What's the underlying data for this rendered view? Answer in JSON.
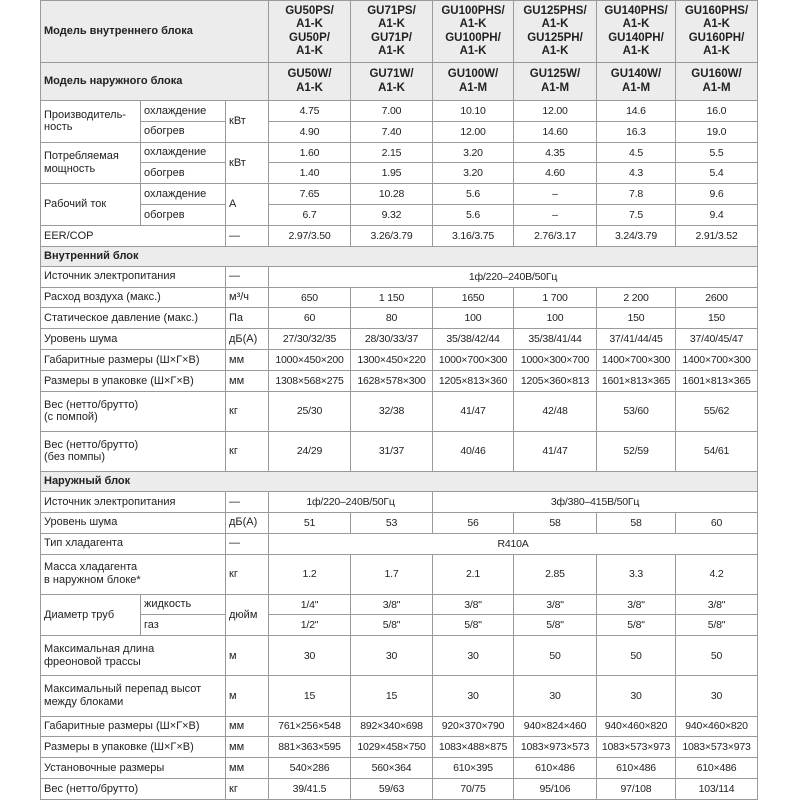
{
  "header": {
    "indoor_label": "Модель внутреннего блока",
    "indoor_models": [
      "GU50PS/\nA1-K\nGU50P/\nA1-K",
      "GU71PS/\nA1-K\nGU71P/\nA1-K",
      "GU100PHS/\nA1-K\nGU100PH/\nA1-K",
      "GU125PHS/\nA1-K\nGU125PH/\nA1-K",
      "GU140PHS/\nA1-K\nGU140PH/\nA1-K",
      "GU160PHS/\nA1-K\nGU160PH/\nA1-K"
    ],
    "outdoor_label": "Модель наружного блока",
    "outdoor_models": [
      "GU50W/\nA1-K",
      "GU71W/\nA1-K",
      "GU100W/\nA1-M",
      "GU125W/\nA1-M",
      "GU140W/\nA1-M",
      "GU160W/\nA1-M"
    ]
  },
  "performance": [
    {
      "label": "Производитель-\nность",
      "unit": "кВт",
      "modes": [
        "охлаждение",
        "обогрев"
      ],
      "values": [
        [
          "4.75",
          "7.00",
          "10.10",
          "12.00",
          "14.6",
          "16.0"
        ],
        [
          "4.90",
          "7.40",
          "12.00",
          "14.60",
          "16.3",
          "19.0"
        ]
      ]
    },
    {
      "label": "Потребляемая\nмощность",
      "unit": "кВт",
      "modes": [
        "охлаждение",
        "обогрев"
      ],
      "values": [
        [
          "1.60",
          "2.15",
          "3.20",
          "4.35",
          "4.5",
          "5.5"
        ],
        [
          "1.40",
          "1.95",
          "3.20",
          "4.60",
          "4.3",
          "5.4"
        ]
      ]
    },
    {
      "label": "Рабочий ток",
      "unit": "А",
      "modes": [
        "охлаждение",
        "обогрев"
      ],
      "values": [
        [
          "7.65",
          "10.28",
          "5.6",
          "–",
          "7.8",
          "9.6"
        ],
        [
          "6.7",
          "9.32",
          "5.6",
          "–",
          "7.5",
          "9.4"
        ]
      ]
    },
    {
      "label": "EER/COP",
      "unit": "—",
      "values": [
        "2.97/3.50",
        "3.26/3.79",
        "3.16/3.75",
        "2.76/3.17",
        "3.24/3.79",
        "2.91/3.52"
      ]
    }
  ],
  "indoor": {
    "title": "Внутренний блок",
    "rows": [
      {
        "label": "Источник электропитания",
        "unit": "—",
        "values": [
          "1ф/220–240В/50Гц"
        ]
      },
      {
        "label": "Расход воздуха (макс.)",
        "unit": "м³/ч",
        "values": [
          "650",
          "1 150",
          "1650",
          "1 700",
          "2 200",
          "2600"
        ]
      },
      {
        "label": "Статическое давление (макс.)",
        "unit": "Па",
        "values": [
          "60",
          "80",
          "100",
          "100",
          "150",
          "150"
        ]
      },
      {
        "label": "Уровень шума",
        "unit": "дБ(А)",
        "values": [
          "27/30/32/35",
          "28/30/33/37",
          "35/38/42/44",
          "35/38/41/44",
          "37/41/44/45",
          "37/40/45/47"
        ]
      },
      {
        "label": "Габаритные размеры (Ш×Г×В)",
        "unit": "мм",
        "values": [
          "1000×450×200",
          "1300×450×220",
          "1000×700×300",
          "1000×300×700",
          "1400×700×300",
          "1400×700×300"
        ]
      },
      {
        "label": "Размеры в упаковке (Ш×Г×В)",
        "unit": "мм",
        "values": [
          "1308×568×275",
          "1628×578×300",
          "1205×813×360",
          "1205×360×813",
          "1601×813×365",
          "1601×813×365"
        ]
      },
      {
        "label": "Вес (нетто/брутто)\n(с помпой)",
        "unit": "кг",
        "values": [
          "25/30",
          "32/38",
          "41/47",
          "42/48",
          "53/60",
          "55/62"
        ]
      },
      {
        "label": "Вес (нетто/брутто)\n(без помпы)",
        "unit": "кг",
        "values": [
          "24/29",
          "31/37",
          "40/46",
          "41/47",
          "52/59",
          "54/61"
        ]
      }
    ]
  },
  "outdoor": {
    "title": "Наружный блок",
    "rows": [
      {
        "label": "Источник электропитания",
        "unit": "—",
        "values": [
          "1ф/220–240В/50Гц",
          "3ф/380–415В/50Гц"
        ]
      },
      {
        "label": "Уровень шума",
        "unit": "дБ(А)",
        "values": [
          "51",
          "53",
          "56",
          "58",
          "58",
          "60"
        ]
      },
      {
        "label": "Тип хладагента",
        "unit": "—",
        "values": [
          "R410A"
        ]
      },
      {
        "label": "Масса хладагента\nв наружном блоке*",
        "unit": "кг",
        "values": [
          "1.2",
          "1.7",
          "2.1",
          "2.85",
          "3.3",
          "4.2"
        ]
      },
      {
        "label": "Диаметр труб",
        "unit": "дюйм",
        "modes": [
          "жидкость",
          "газ"
        ],
        "values": [
          [
            "1/4\"",
            "3/8\"",
            "3/8\"",
            "3/8\"",
            "3/8\"",
            "3/8\""
          ],
          [
            "1/2\"",
            "5/8\"",
            "5/8\"",
            "5/8\"",
            "5/8\"",
            "5/8\""
          ]
        ]
      },
      {
        "label": "Максимальная длина\nфреоновой трассы",
        "unit": "м",
        "values": [
          "30",
          "30",
          "30",
          "50",
          "50",
          "50"
        ]
      },
      {
        "label": "Максимальный перепад высот\nмежду блоками",
        "unit": "м",
        "values": [
          "15",
          "15",
          "30",
          "30",
          "30",
          "30"
        ]
      },
      {
        "label": "Габаритные размеры (Ш×Г×В)",
        "unit": "мм",
        "values": [
          "761×256×548",
          "892×340×698",
          "920×370×790",
          "940×824×460",
          "940×460×820",
          "940×460×820"
        ]
      },
      {
        "label": "Размеры в упаковке (Ш×Г×В)",
        "unit": "мм",
        "values": [
          "881×363×595",
          "1029×458×750",
          "1083×488×875",
          "1083×973×573",
          "1083×573×973",
          "1083×573×973"
        ]
      },
      {
        "label": "Установочные размеры",
        "unit": "мм",
        "values": [
          "540×286",
          "560×364",
          "610×395",
          "610×486",
          "610×486",
          "610×486"
        ]
      },
      {
        "label": "Вес (нетто/брутто)",
        "unit": "кг",
        "values": [
          "39/41.5",
          "59/63",
          "70/75",
          "95/106",
          "97/108",
          "103/114"
        ]
      }
    ]
  }
}
